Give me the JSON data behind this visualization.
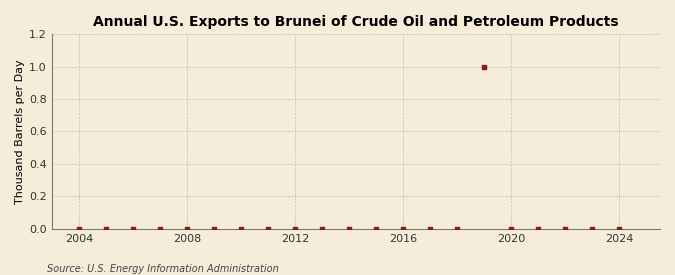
{
  "title": "Annual U.S. Exports to Brunei of Crude Oil and Petroleum Products",
  "ylabel": "Thousand Barrels per Day",
  "source": "Source: U.S. Energy Information Administration",
  "xlim": [
    2003.0,
    2025.5
  ],
  "ylim": [
    0.0,
    1.2
  ],
  "yticks": [
    0.0,
    0.2,
    0.4,
    0.6,
    0.8,
    1.0,
    1.2
  ],
  "xticks": [
    2004,
    2008,
    2012,
    2016,
    2020,
    2024
  ],
  "background_color": "#f5edda",
  "grid_color": "#aaaaaa",
  "data_color": "#8B1A1A",
  "years": [
    2004,
    2005,
    2006,
    2007,
    2008,
    2009,
    2010,
    2011,
    2012,
    2013,
    2014,
    2015,
    2016,
    2017,
    2018,
    2019,
    2020,
    2021,
    2022,
    2023,
    2024
  ],
  "values": [
    0.0,
    0.0,
    0.0,
    0.0,
    0.0,
    0.0,
    0.0,
    0.0,
    0.0,
    0.0,
    0.0,
    0.0,
    0.0,
    0.0,
    0.0,
    1.0,
    0.0,
    0.0,
    0.0,
    0.0,
    0.0
  ],
  "title_fontsize": 10,
  "axis_fontsize": 8,
  "source_fontsize": 7,
  "marker_size": 3
}
